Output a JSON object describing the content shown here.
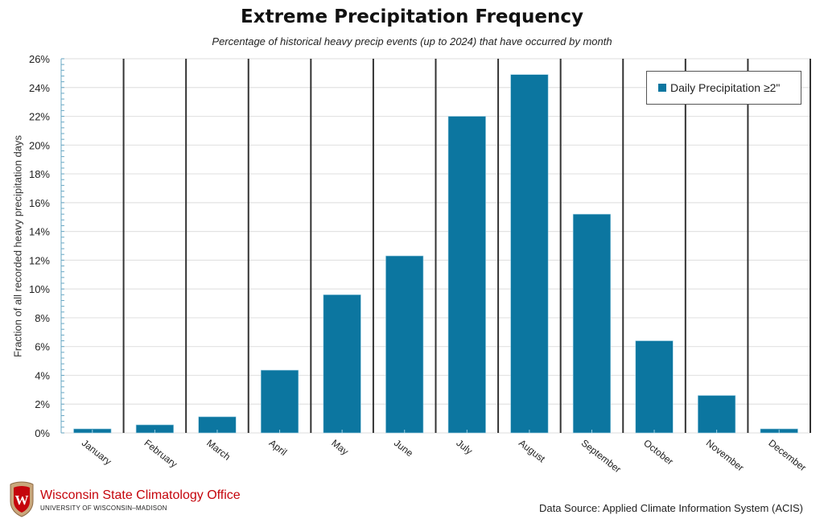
{
  "chart_data": {
    "type": "bar",
    "title": "Extreme Precipitation Frequency",
    "subtitle": "Percentage of historical heavy precip events (up to 2024) that have occurred by month",
    "xlabel": "",
    "ylabel": "Fraction of all recorded heavy precipitation days",
    "ylim": [
      0,
      26
    ],
    "yticks": [
      "0%",
      "2%",
      "4%",
      "6%",
      "8%",
      "10%",
      "12%",
      "14%",
      "16%",
      "18%",
      "20%",
      "22%",
      "24%",
      "26%"
    ],
    "ytick_values": [
      0,
      2,
      4,
      6,
      8,
      10,
      12,
      14,
      16,
      18,
      20,
      22,
      24,
      26
    ],
    "grid": true,
    "legend_position": "top-right",
    "categories": [
      "January",
      "February",
      "March",
      "April",
      "May",
      "June",
      "July",
      "August",
      "September",
      "October",
      "November",
      "December"
    ],
    "series": [
      {
        "name": "Daily Precipitation ≥2\"",
        "color": "#0c76a0",
        "values": [
          0.28,
          0.56,
          1.12,
          4.36,
          9.6,
          12.3,
          22.0,
          24.9,
          15.2,
          6.4,
          2.6,
          0.28
        ]
      }
    ]
  },
  "footer": {
    "org_name": "Wisconsin State Climatology Office",
    "org_sub": "UNIVERSITY OF WISCONSIN–MADISON",
    "logo_letter": "W",
    "source": "Data Source: Applied Climate Information System (ACIS)"
  },
  "colors": {
    "bar": "#0c76a0",
    "separator": "#333333",
    "grid": "#e3e3e3",
    "brand_red": "#c5050c"
  }
}
